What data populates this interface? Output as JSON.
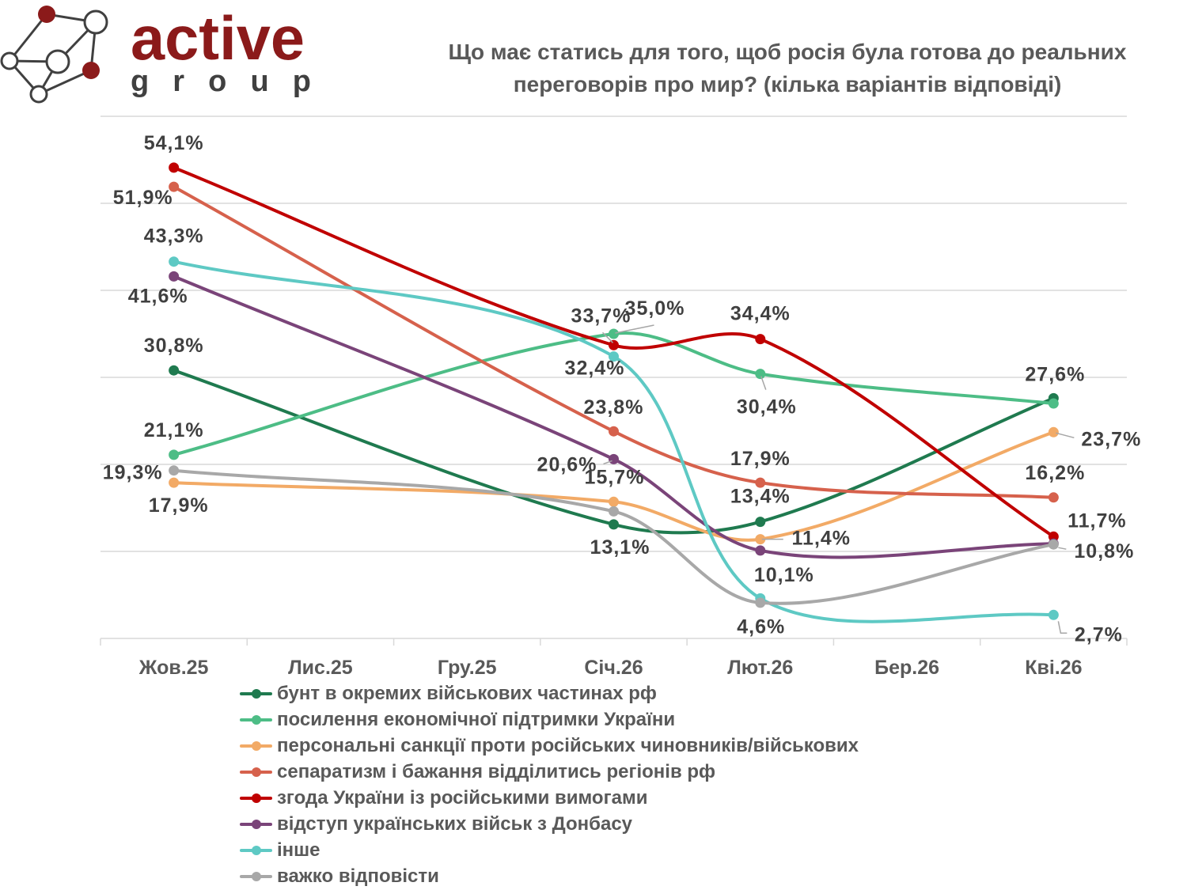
{
  "logo": {
    "word1": "active",
    "word2": "group",
    "accent_color": "#8b1a1a",
    "dark_color": "#404040"
  },
  "chart_data": {
    "type": "line",
    "smooth": true,
    "title": "Що має статись для того, щоб росія була готова до реальних переговорів про мир? (кілька варіантів відповіді)",
    "title_lines": [
      "Що має статись для того, щоб росія була готова до реальних",
      "переговорів про мир? (кілька варіантів відповіді)"
    ],
    "xlabel": "",
    "ylabel": "",
    "y_unit": "%",
    "ylim": [
      0,
      60
    ],
    "y_grid_step": 10,
    "grid": true,
    "legend_position": "bottom",
    "categories": [
      "Жов.25",
      "Лис.25",
      "Гру.25",
      "Січ.26",
      "Лют.26",
      "Бер.26",
      "Кві.26"
    ],
    "series": [
      {
        "name": "бунт в окремих військових частинах рф",
        "color": "#1f7a4f",
        "values": [
          30.8,
          null,
          null,
          13.1,
          13.4,
          null,
          27.6
        ],
        "labels": [
          "30,8%",
          null,
          null,
          "13,1%",
          "13,4%",
          null,
          "27,6%"
        ]
      },
      {
        "name": "посилення економічної підтримки України",
        "color": "#4dbd86",
        "values": [
          21.1,
          null,
          null,
          35.0,
          30.4,
          null,
          27.0
        ],
        "labels": [
          "21,1%",
          null,
          null,
          "35,0%",
          "30,4%",
          null,
          null
        ]
      },
      {
        "name": "персональні санкції проти російських чиновників/військових",
        "color": "#f2aa66",
        "values": [
          17.9,
          null,
          null,
          15.7,
          11.4,
          null,
          23.7
        ],
        "labels": [
          "17,9%",
          null,
          null,
          "15,7%",
          "11,4%",
          null,
          "23,7%"
        ]
      },
      {
        "name": "сепаратизм і бажання відділитись регіонів рф",
        "color": "#d6614c",
        "values": [
          51.9,
          null,
          null,
          23.8,
          17.9,
          null,
          16.2
        ],
        "labels": [
          "51,9%",
          null,
          null,
          "23,8%",
          "17,9%",
          null,
          "16,2%"
        ]
      },
      {
        "name": "згода України із російськими вимогами",
        "color": "#c00000",
        "values": [
          54.1,
          null,
          null,
          33.7,
          34.4,
          null,
          11.7
        ],
        "labels": [
          "54,1%",
          null,
          null,
          "33,7%",
          "34,4%",
          null,
          "11,7%"
        ]
      },
      {
        "name": "відступ українських військ з Донбасу",
        "color": "#7a4479",
        "values": [
          41.6,
          null,
          null,
          20.6,
          10.1,
          null,
          10.9
        ],
        "labels": [
          "41,6%",
          null,
          null,
          "20,6%",
          "10,1%",
          null,
          null
        ]
      },
      {
        "name": "інше",
        "color": "#5ec9c4",
        "values": [
          43.3,
          null,
          null,
          32.4,
          4.6,
          null,
          2.7
        ],
        "labels": [
          "43,3%",
          null,
          null,
          "32,4%",
          "4,6%",
          null,
          "2,7%"
        ]
      },
      {
        "name": "важко відповісти",
        "color": "#a8a8a8",
        "values": [
          19.3,
          null,
          null,
          14.6,
          4.1,
          null,
          10.8
        ],
        "labels": [
          "19,3%",
          null,
          null,
          null,
          null,
          null,
          "10,8%"
        ]
      }
    ]
  }
}
